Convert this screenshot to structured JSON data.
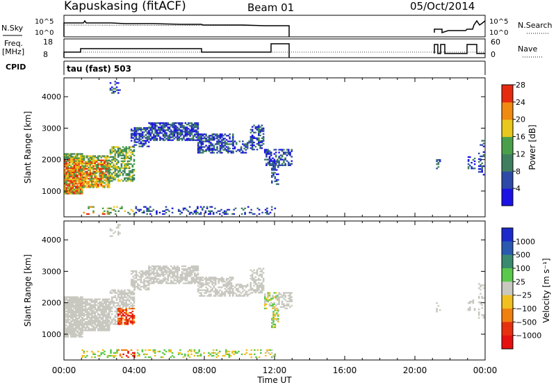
{
  "header": {
    "station": "Kapuskasing (fitACF)",
    "beam": "Beam 01",
    "date": "05/Oct/2014"
  },
  "noise_panel": {
    "left_label": "N.Sky",
    "right_label": "N.Search",
    "tick_top": "10^5",
    "tick_bottom": "10^0"
  },
  "freq_panel": {
    "left_label_top": "Freq.",
    "left_label_bottom": "[MHz]",
    "left_ticks": [
      "18",
      "8"
    ],
    "right_ticks": [
      "60",
      "0"
    ],
    "right_label": "Nave"
  },
  "cpid": {
    "label": "CPID",
    "program": "tau (fast) 503"
  },
  "chart_data": [
    {
      "type": "heatmap",
      "name": "Power",
      "ylabel": "Slant Range [km]",
      "xlabel": "Time UT",
      "x_ticks": [
        "00:00",
        "04:00",
        "08:00",
        "12:00",
        "16:00",
        "20:00",
        "00:00"
      ],
      "x_range_hours": [
        0,
        24
      ],
      "y_ticks": [
        1000,
        2000,
        3000,
        4000
      ],
      "y_range_km": [
        180,
        4600
      ],
      "colorbar": {
        "label": "Power [dB]",
        "ticks": [
          "4",
          "8",
          "12",
          "16",
          "20",
          "24",
          "28"
        ],
        "colors": [
          "#1c12e6",
          "#2e4aa8",
          "#3f7f60",
          "#4aa04a",
          "#e8c81c",
          "#f08a10",
          "#e62a10"
        ]
      }
    },
    {
      "type": "heatmap",
      "name": "Velocity",
      "ylabel": "Slant Range [km]",
      "xlabel": "Time UT",
      "x_ticks": [
        "00:00",
        "04:00",
        "08:00",
        "12:00",
        "16:00",
        "20:00",
        "00:00"
      ],
      "x_range_hours": [
        0,
        24
      ],
      "y_ticks": [
        1000,
        2000,
        3000,
        4000
      ],
      "y_range_km": [
        180,
        4600
      ],
      "colorbar": {
        "label": "Velocity [m s⁻¹]",
        "ticks": [
          "1000",
          "500",
          "100",
          "25",
          "−25",
          "−100",
          "−500",
          "−1000"
        ],
        "colors": [
          "#1c2acc",
          "#2a5ab0",
          "#3a8a70",
          "#5ac84a",
          "#c8c8c0",
          "#f0c020",
          "#f08010",
          "#e63010",
          "#e61010"
        ]
      }
    }
  ],
  "x_axis": {
    "label": "Time UT"
  }
}
